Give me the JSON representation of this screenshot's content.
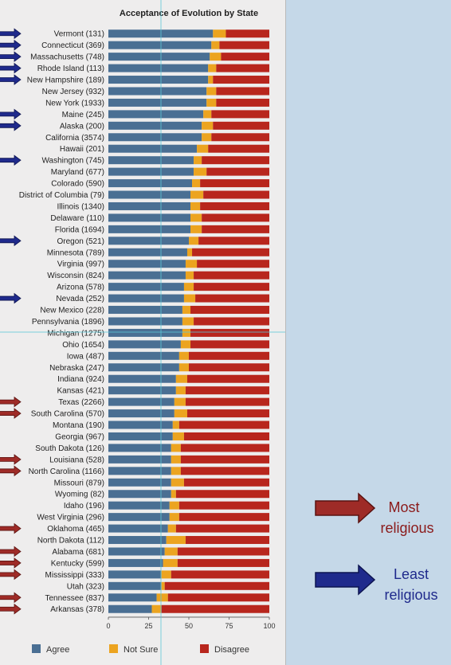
{
  "chart_data": {
    "type": "bar",
    "stacked": true,
    "orientation": "horizontal",
    "title": "Acceptance of Evolution by State",
    "xlim": [
      0,
      100
    ],
    "xticks": [
      0,
      25,
      50,
      75,
      100
    ],
    "grid": false,
    "legend_position": "bottom",
    "categories": [
      "Vermont (131)",
      "Connecticut (369)",
      "Massachusetts (748)",
      "Rhode Island (113)",
      "New Hampshire (189)",
      "New Jersey (932)",
      "New York (1933)",
      "Maine (245)",
      "Alaska (200)",
      "California (3574)",
      "Hawaii (201)",
      "Washington (745)",
      "Maryland (677)",
      "Colorado (590)",
      "District of Columbia (79)",
      "Illinois (1340)",
      "Delaware (110)",
      "Florida (1694)",
      "Oregon (521)",
      "Minnesota (789)",
      "Virginia (997)",
      "Wisconsin (824)",
      "Arizona (578)",
      "Nevada (252)",
      "New Mexico (228)",
      "Pennsylvania (1896)",
      "Michigan (1275)",
      "Ohio (1654)",
      "Iowa (487)",
      "Nebraska (247)",
      "Indiana (924)",
      "Kansas (421)",
      "Texas (2266)",
      "South Carolina (570)",
      "Montana (190)",
      "Georgia (967)",
      "South Dakota (126)",
      "Louisiana (528)",
      "North Carolina (1166)",
      "Missouri (879)",
      "Wyoming (82)",
      "Idaho (196)",
      "West Virginia (296)",
      "Oklahoma (465)",
      "North Dakota (112)",
      "Alabama (681)",
      "Kentucky (599)",
      "Mississippi (333)",
      "Utah (323)",
      "Tennessee (837)",
      "Arkansas (378)"
    ],
    "series": [
      {
        "name": "Agree",
        "color": "#4a6f93",
        "values": [
          65,
          64,
          63,
          62,
          62,
          61,
          61,
          59,
          58,
          58,
          55,
          53,
          53,
          52,
          51,
          51,
          51,
          51,
          50,
          49,
          48,
          48,
          47,
          47,
          46,
          46,
          46,
          45,
          44,
          44,
          42,
          42,
          41,
          41,
          40,
          40,
          39,
          39,
          39,
          39,
          39,
          38,
          38,
          37,
          36,
          35,
          34,
          33,
          33,
          30,
          27
        ]
      },
      {
        "name": "Not Sure",
        "color": "#eca420",
        "values": [
          8,
          5,
          7,
          5,
          3,
          6,
          6,
          5,
          7,
          6,
          7,
          5,
          8,
          5,
          8,
          6,
          7,
          7,
          6,
          3,
          7,
          5,
          6,
          7,
          5,
          7,
          5,
          6,
          6,
          6,
          7,
          6,
          7,
          8,
          4,
          7,
          6,
          6,
          6,
          8,
          3,
          6,
          6,
          5,
          12,
          8,
          9,
          6,
          2,
          7,
          6
        ]
      },
      {
        "name": "Disagree",
        "color": "#b8261d",
        "values": [
          27,
          31,
          30,
          33,
          35,
          33,
          33,
          36,
          35,
          36,
          38,
          42,
          39,
          43,
          41,
          43,
          42,
          42,
          44,
          48,
          45,
          47,
          47,
          46,
          49,
          47,
          49,
          49,
          50,
          50,
          51,
          52,
          52,
          51,
          56,
          53,
          55,
          55,
          55,
          53,
          58,
          56,
          56,
          58,
          52,
          57,
          57,
          61,
          65,
          63,
          67
        ]
      }
    ],
    "markers": {
      "least_religious": [
        0,
        1,
        2,
        3,
        4,
        7,
        8,
        11,
        18,
        23
      ],
      "most_religious": [
        32,
        33,
        37,
        38,
        43,
        45,
        46,
        47,
        49,
        50
      ]
    }
  },
  "annotations": {
    "most": {
      "line1": "Most",
      "line2": "religious",
      "color": "#8b1a1a"
    },
    "least": {
      "line1": "Least",
      "line2": "religious",
      "color": "#1f2a8c"
    }
  }
}
